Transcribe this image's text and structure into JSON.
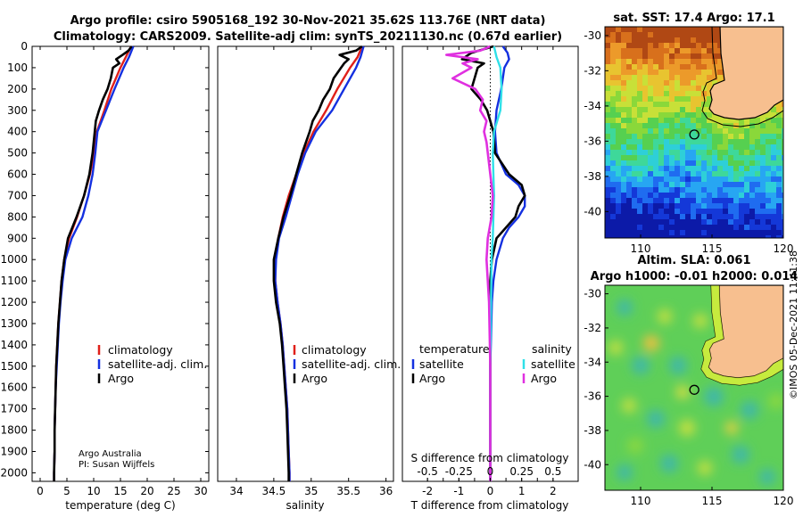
{
  "header": {
    "title_line1": "Argo profile: csiro 5905168_192 30-Nov-2021 35.62S 113.76E (NRT data)",
    "title_line2": "Climatology: CARS2009. Satellite-adj clim: synTS_20211130.nc (0.67d earlier)"
  },
  "colors": {
    "red": "#e0201a",
    "blue": "#1430e0",
    "black": "#000000",
    "cyan": "#2fe0e8",
    "magenta": "#e030e0"
  },
  "depth_axis": {
    "ticks": [
      0,
      100,
      200,
      300,
      400,
      500,
      600,
      700,
      800,
      900,
      1000,
      1100,
      1200,
      1300,
      1400,
      1500,
      1600,
      1700,
      1800,
      1900,
      2000
    ],
    "tick_labels": [
      "0",
      "100",
      "200",
      "300",
      "400",
      "500",
      "600",
      "700",
      "800",
      "900",
      "1000",
      "1100",
      "1200",
      "1300",
      "1400",
      "1500",
      "1600",
      "1700",
      "1800",
      "1900",
      "2000"
    ]
  },
  "chart_data": [
    {
      "type": "line",
      "name": "temperature",
      "xlabel": "temperature (deg C)",
      "xlim": [
        -1.5,
        31.5
      ],
      "ylim": [
        2040,
        0
      ],
      "xticks": [
        0,
        5,
        10,
        15,
        20,
        25,
        30
      ],
      "xtick_labels": [
        "0",
        "5",
        "10",
        "15",
        "20",
        "25",
        "30"
      ],
      "legend": [
        "climatology",
        "satellite-adj. clim.",
        "Argo"
      ],
      "credit": [
        "Argo Australia",
        "PI: Susan Wijffels"
      ],
      "series": [
        {
          "name": "climatology",
          "color": "#e0201a",
          "depth": [
            0,
            50,
            100,
            200,
            300,
            400,
            500,
            600,
            700,
            800,
            900,
            1000,
            1100,
            1200,
            1300,
            1400,
            1500,
            1600,
            1700,
            1800,
            1900,
            2000,
            2040
          ],
          "values": [
            17.0,
            16.0,
            15.0,
            13.3,
            12.0,
            10.6,
            10.1,
            9.3,
            8.2,
            6.9,
            5.4,
            4.5,
            4.0,
            3.7,
            3.4,
            3.2,
            3.0,
            2.9,
            2.8,
            2.7,
            2.7,
            2.6,
            2.6
          ]
        },
        {
          "name": "satellite-adj. clim.",
          "color": "#1430e0",
          "depth": [
            0,
            50,
            100,
            200,
            300,
            400,
            500,
            600,
            700,
            800,
            900,
            1000,
            1100,
            1200,
            1300,
            1400,
            1500,
            1600,
            1700,
            1800,
            1900,
            2000,
            2040
          ],
          "values": [
            17.4,
            16.6,
            15.6,
            13.9,
            12.3,
            10.7,
            10.3,
            9.8,
            9.0,
            7.9,
            5.9,
            4.7,
            4.2,
            3.8,
            3.5,
            3.3,
            3.1,
            2.9,
            2.8,
            2.7,
            2.7,
            2.6,
            2.6
          ]
        },
        {
          "name": "Argo",
          "color": "#000000",
          "depth": [
            0,
            20,
            40,
            60,
            80,
            100,
            150,
            200,
            250,
            300,
            350,
            400,
            450,
            500,
            600,
            700,
            800,
            900,
            1000,
            1100,
            1200,
            1300,
            1400,
            1500,
            1600,
            1700,
            1800,
            1900,
            2000,
            2040
          ],
          "values": [
            17.1,
            16.5,
            15.4,
            14.2,
            14.8,
            13.6,
            13.2,
            12.6,
            11.7,
            11.0,
            10.4,
            10.2,
            10.0,
            9.8,
            9.2,
            8.2,
            6.8,
            5.2,
            4.5,
            4.0,
            3.7,
            3.4,
            3.2,
            3.0,
            2.9,
            2.8,
            2.7,
            2.7,
            2.6,
            2.6
          ]
        }
      ]
    },
    {
      "type": "line",
      "name": "salinity",
      "xlabel": "salinity",
      "xlim": [
        33.75,
        36.1
      ],
      "ylim": [
        2040,
        0
      ],
      "xticks": [
        34,
        34.5,
        35,
        35.5,
        36
      ],
      "xtick_labels": [
        "34",
        "34.5",
        "35",
        "35.5",
        "36"
      ],
      "legend": [
        "climatology",
        "satellite-adj. clim.",
        "Argo"
      ],
      "series": [
        {
          "name": "climatology",
          "color": "#e0201a",
          "depth": [
            0,
            50,
            100,
            200,
            300,
            400,
            500,
            600,
            700,
            800,
            900,
            1000,
            1100,
            1200,
            1300,
            1400,
            1500,
            1600,
            1700,
            1800,
            1900,
            2000,
            2040
          ],
          "values": [
            35.68,
            35.62,
            35.52,
            35.35,
            35.2,
            35.03,
            34.9,
            34.8,
            34.7,
            34.62,
            34.56,
            34.52,
            34.52,
            34.55,
            34.59,
            34.62,
            34.64,
            34.66,
            34.68,
            34.69,
            34.7,
            34.71,
            34.71
          ]
        },
        {
          "name": "satellite-adj. clim.",
          "color": "#1430e0",
          "depth": [
            0,
            50,
            100,
            200,
            300,
            400,
            500,
            600,
            700,
            800,
            900,
            1000,
            1100,
            1200,
            1300,
            1400,
            1500,
            1600,
            1700,
            1800,
            1900,
            2000,
            2040
          ],
          "values": [
            35.7,
            35.66,
            35.6,
            35.44,
            35.28,
            35.06,
            34.92,
            34.82,
            34.74,
            34.66,
            34.57,
            34.53,
            34.52,
            34.55,
            34.59,
            34.62,
            34.64,
            34.66,
            34.68,
            34.69,
            34.7,
            34.71,
            34.71
          ]
        },
        {
          "name": "Argo",
          "color": "#000000",
          "depth": [
            0,
            20,
            40,
            60,
            80,
            100,
            150,
            200,
            250,
            300,
            350,
            400,
            450,
            500,
            600,
            700,
            800,
            900,
            1000,
            1100,
            1200,
            1300,
            1400,
            1500,
            1600,
            1700,
            1800,
            1900,
            2000,
            2040
          ],
          "values": [
            35.68,
            35.6,
            35.38,
            35.5,
            35.44,
            35.4,
            35.3,
            35.25,
            35.16,
            35.1,
            35.02,
            34.98,
            34.93,
            34.88,
            34.8,
            34.72,
            34.63,
            34.56,
            34.5,
            34.5,
            34.53,
            34.58,
            34.61,
            34.63,
            34.65,
            34.67,
            34.68,
            34.69,
            34.7,
            34.7
          ]
        }
      ]
    },
    {
      "type": "line",
      "name": "difference from climatology",
      "xlabel": "T difference from climatology",
      "xlabel_top": "S difference from climatology",
      "xlim": [
        -2.8,
        2.8
      ],
      "ylim": [
        2040,
        0
      ],
      "xticks": [
        -2,
        -1.5,
        -1,
        -0.5,
        0,
        0.5,
        1,
        1.5,
        2
      ],
      "xtick_labels": [
        "-2",
        "",
        "-1",
        "",
        "0",
        "",
        "1",
        "",
        "2"
      ],
      "s_ticks": [
        -0.5,
        -0.25,
        0,
        0.25,
        0.5
      ],
      "s_tick_labels": [
        "-0.5",
        "-0.25",
        "0",
        "0.25",
        "0.5"
      ],
      "legend_titles": [
        "temperature",
        "salinity"
      ],
      "legend": [
        "satellite",
        "Argo",
        "satellite",
        "Argo"
      ],
      "series": [
        {
          "name": "T satellite",
          "color": "#1430e0",
          "depth": [
            0,
            30,
            60,
            100,
            200,
            300,
            400,
            500,
            600,
            650,
            700,
            750,
            800,
            850,
            900,
            1000,
            1100,
            1200,
            1500,
            2000,
            2040
          ],
          "values": [
            0.4,
            0.55,
            0.6,
            0.45,
            0.35,
            0.2,
            0.15,
            0.2,
            0.5,
            0.9,
            1.1,
            1.1,
            0.9,
            0.6,
            0.4,
            0.2,
            0.1,
            0.05,
            0.0,
            0.0,
            0.0
          ]
        },
        {
          "name": "T Argo",
          "color": "#000000",
          "depth": [
            0,
            30,
            60,
            80,
            100,
            150,
            200,
            250,
            300,
            400,
            500,
            600,
            650,
            700,
            750,
            800,
            900,
            1000,
            1100,
            1200,
            1500,
            2000,
            2040
          ],
          "values": [
            0.1,
            -0.6,
            -0.9,
            -0.2,
            -0.4,
            -0.5,
            -0.6,
            -0.3,
            -0.1,
            0.1,
            0.15,
            0.6,
            1.0,
            1.1,
            0.9,
            0.8,
            0.2,
            0.05,
            0.0,
            0.0,
            0.0,
            0.0,
            0.0
          ]
        },
        {
          "name": "S satellite",
          "color": "#2fe0e8",
          "depth": [
            0,
            50,
            100,
            200,
            300,
            400,
            500,
            700,
            900,
            1000,
            1500,
            2000,
            2040
          ],
          "values": [
            0.03,
            0.05,
            0.08,
            0.09,
            0.08,
            0.03,
            0.02,
            0.03,
            0.02,
            0.01,
            0.0,
            0.0,
            0.0
          ]
        },
        {
          "name": "S Argo",
          "color": "#e030e0",
          "depth": [
            0,
            20,
            40,
            60,
            80,
            100,
            150,
            200,
            250,
            300,
            350,
            400,
            450,
            500,
            600,
            700,
            800,
            900,
            1000,
            1100,
            1200,
            1500,
            2000,
            2040
          ],
          "values": [
            0.0,
            -0.08,
            -0.35,
            -0.1,
            -0.22,
            -0.15,
            -0.3,
            -0.12,
            -0.06,
            -0.08,
            -0.03,
            -0.05,
            -0.03,
            -0.02,
            0.0,
            0.02,
            0.01,
            -0.02,
            -0.03,
            -0.02,
            -0.01,
            0.0,
            0.0,
            0.0
          ]
        }
      ]
    }
  ],
  "maps": {
    "sst": {
      "title": "sat. SST: 17.4 Argo: 17.1",
      "xticks": [
        110,
        115,
        120
      ],
      "xtick_labels": [
        "110",
        "115",
        "120"
      ],
      "yticks": [
        -30,
        -32,
        -34,
        -36,
        -38,
        -40
      ],
      "ytick_labels": [
        "-30",
        "-32",
        "-34",
        "-36",
        "-38",
        "-40"
      ],
      "lon_range": [
        107.5,
        120
      ],
      "lat_range": [
        -41.5,
        -29.5
      ],
      "argo_lon": 113.76,
      "argo_lat": -35.62
    },
    "sla": {
      "title_line1": "Altim. SLA: 0.061",
      "title_line2": "Argo h1000: -0.01 h2000: 0.014",
      "xticks": [
        110,
        115,
        120
      ],
      "xtick_labels": [
        "110",
        "115",
        "120"
      ],
      "yticks": [
        -30,
        -32,
        -34,
        -36,
        -38,
        -40
      ],
      "ytick_labels": [
        "-30",
        "-32",
        "-34",
        "-36",
        "-38",
        "-40"
      ],
      "lon_range": [
        107.5,
        120
      ],
      "lat_range": [
        -41.5,
        -29.5
      ],
      "argo_lon": 113.76,
      "argo_lat": -35.62
    }
  },
  "footer": {
    "stamp": "©IMOS 05-Dec-2021 11:41:38"
  }
}
